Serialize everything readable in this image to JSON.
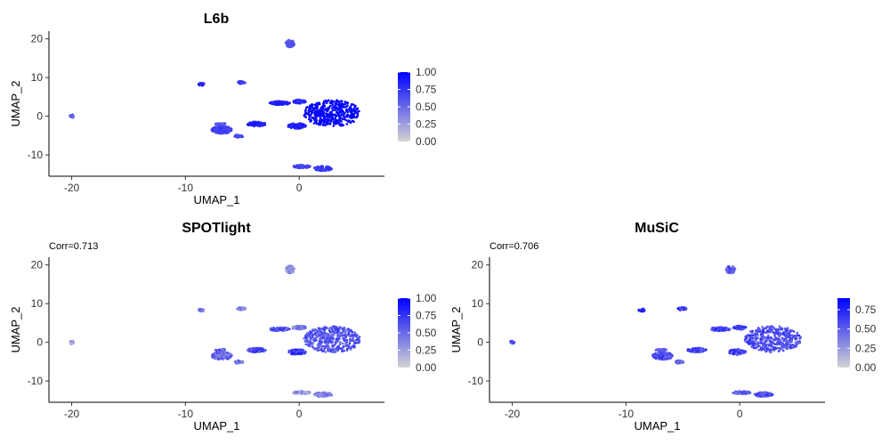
{
  "chart_data": [
    {
      "type": "scatter",
      "title": "L6b",
      "subtitle": "",
      "xlabel": "UMAP_1",
      "ylabel": "UMAP_2",
      "xlim": [
        -22,
        7.5
      ],
      "ylim": [
        -15.5,
        22
      ],
      "xticks": [
        -20,
        -10,
        0
      ],
      "yticks": [
        -10,
        0,
        10,
        20
      ],
      "color_scale": {
        "low": "#d3d3d3",
        "high": "#0000ff",
        "min": 0,
        "max": 1,
        "breaks": [
          "0.00",
          "0.25",
          "0.50",
          "0.75",
          "1.00"
        ]
      },
      "clusters": [
        {
          "x": [
            -20.2,
            -19.8
          ],
          "y": [
            -0.5,
            0.5
          ],
          "value": 0.55
        },
        {
          "x": [
            -8.9,
            -8.3
          ],
          "y": [
            7.9,
            8.7
          ],
          "value": 0.8
        },
        {
          "x": [
            -5.5,
            -4.7
          ],
          "y": [
            8.3,
            9.1
          ],
          "value": 0.7
        },
        {
          "x": [
            -1.2,
            -0.4
          ],
          "y": [
            17.8,
            19.8
          ],
          "value": 0.6
        },
        {
          "x": [
            -2.6,
            -0.8
          ],
          "y": [
            2.9,
            3.9
          ],
          "value": 0.85
        },
        {
          "x": [
            -0.6,
            0.6
          ],
          "y": [
            3.3,
            4.3
          ],
          "value": 0.8
        },
        {
          "x": [
            -4.6,
            -2.9
          ],
          "y": [
            -2.6,
            -1.4
          ],
          "value": 0.85
        },
        {
          "x": [
            -7.7,
            -5.9
          ],
          "y": [
            -4.5,
            -2.5
          ],
          "value": 0.7
        },
        {
          "x": [
            -5.7,
            -4.9
          ],
          "y": [
            -5.5,
            -4.7
          ],
          "value": 0.65
        },
        {
          "x": [
            -7.4,
            -6.4
          ],
          "y": [
            -2.3,
            -1.7
          ],
          "value": 0.6
        },
        {
          "x": [
            -1.0,
            0.6
          ],
          "y": [
            -3.2,
            -1.8
          ],
          "value": 0.85
        },
        {
          "x": [
            -0.6,
            1.0
          ],
          "y": [
            -13.4,
            -12.6
          ],
          "value": 0.7
        },
        {
          "x": [
            1.3,
            2.9
          ],
          "y": [
            -14.1,
            -12.9
          ],
          "value": 0.75
        },
        {
          "x": [
            0.4,
            5.4
          ],
          "y": [
            -2.6,
            4.2
          ],
          "value": 0.98
        }
      ]
    },
    {
      "type": "scatter",
      "title": "SPOTlight",
      "subtitle": "Corr=0.713",
      "xlabel": "UMAP_1",
      "ylabel": "UMAP_2",
      "xlim": [
        -22,
        7.5
      ],
      "ylim": [
        -15.5,
        22
      ],
      "xticks": [
        -20,
        -10,
        0
      ],
      "yticks": [
        -10,
        0,
        10,
        20
      ],
      "color_scale": {
        "low": "#d3d3d3",
        "high": "#0000ff",
        "min": 0,
        "max": 1,
        "breaks": [
          "0.00",
          "0.25",
          "0.50",
          "0.75",
          "1.00"
        ]
      },
      "clusters": [
        {
          "x": [
            -20.2,
            -19.8
          ],
          "y": [
            -0.5,
            0.5
          ],
          "value": 0.2
        },
        {
          "x": [
            -8.9,
            -8.3
          ],
          "y": [
            7.9,
            8.7
          ],
          "value": 0.45
        },
        {
          "x": [
            -5.5,
            -4.7
          ],
          "y": [
            8.3,
            9.1
          ],
          "value": 0.35
        },
        {
          "x": [
            -1.2,
            -0.4
          ],
          "y": [
            17.8,
            19.8
          ],
          "value": 0.3
        },
        {
          "x": [
            -2.6,
            -0.8
          ],
          "y": [
            2.9,
            3.9
          ],
          "value": 0.6
        },
        {
          "x": [
            -0.6,
            0.6
          ],
          "y": [
            3.3,
            4.3
          ],
          "value": 0.4
        },
        {
          "x": [
            -4.6,
            -2.9
          ],
          "y": [
            -2.6,
            -1.4
          ],
          "value": 0.65
        },
        {
          "x": [
            -7.7,
            -5.9
          ],
          "y": [
            -4.5,
            -2.5
          ],
          "value": 0.5
        },
        {
          "x": [
            -5.7,
            -4.9
          ],
          "y": [
            -5.5,
            -4.7
          ],
          "value": 0.45
        },
        {
          "x": [
            -7.4,
            -6.4
          ],
          "y": [
            -2.3,
            -1.7
          ],
          "value": 0.6
        },
        {
          "x": [
            -1.0,
            0.6
          ],
          "y": [
            -3.2,
            -1.8
          ],
          "value": 0.75
        },
        {
          "x": [
            -0.6,
            1.0
          ],
          "y": [
            -13.4,
            -12.6
          ],
          "value": 0.3
        },
        {
          "x": [
            1.3,
            2.9
          ],
          "y": [
            -14.1,
            -12.9
          ],
          "value": 0.4
        },
        {
          "x": [
            0.4,
            5.4
          ],
          "y": [
            -2.6,
            4.2
          ],
          "value": 0.6
        }
      ]
    },
    {
      "type": "scatter",
      "title": "MuSiC",
      "subtitle": "Corr=0.706",
      "xlabel": "UMAP_1",
      "ylabel": "UMAP_2",
      "xlim": [
        -22,
        7.5
      ],
      "ylim": [
        -15.5,
        22
      ],
      "xticks": [
        -20,
        -10,
        0
      ],
      "yticks": [
        -10,
        0,
        10,
        20
      ],
      "color_scale": {
        "low": "#d3d3d3",
        "high": "#0000ff",
        "min": 0,
        "max": 0.9,
        "breaks": [
          "0.00",
          "0.25",
          "0.50",
          "0.75"
        ]
      },
      "clusters": [
        {
          "x": [
            -20.2,
            -19.8
          ],
          "y": [
            -0.5,
            0.5
          ],
          "value": 0.5
        },
        {
          "x": [
            -8.9,
            -8.3
          ],
          "y": [
            7.9,
            8.7
          ],
          "value": 0.7
        },
        {
          "x": [
            -5.5,
            -4.7
          ],
          "y": [
            8.3,
            9.1
          ],
          "value": 0.65
        },
        {
          "x": [
            -1.2,
            -0.4
          ],
          "y": [
            17.8,
            19.8
          ],
          "value": 0.55
        },
        {
          "x": [
            -2.6,
            -0.8
          ],
          "y": [
            2.9,
            3.9
          ],
          "value": 0.6
        },
        {
          "x": [
            -0.6,
            0.6
          ],
          "y": [
            3.3,
            4.3
          ],
          "value": 0.6
        },
        {
          "x": [
            -4.6,
            -2.9
          ],
          "y": [
            -2.6,
            -1.4
          ],
          "value": 0.6
        },
        {
          "x": [
            -7.7,
            -5.9
          ],
          "y": [
            -4.5,
            -2.5
          ],
          "value": 0.55
        },
        {
          "x": [
            -5.7,
            -4.9
          ],
          "y": [
            -5.5,
            -4.7
          ],
          "value": 0.5
        },
        {
          "x": [
            -7.4,
            -6.4
          ],
          "y": [
            -2.3,
            -1.7
          ],
          "value": 0.55
        },
        {
          "x": [
            -1.0,
            0.6
          ],
          "y": [
            -3.2,
            -1.8
          ],
          "value": 0.6
        },
        {
          "x": [
            -0.6,
            1.0
          ],
          "y": [
            -13.4,
            -12.6
          ],
          "value": 0.5
        },
        {
          "x": [
            1.3,
            2.9
          ],
          "y": [
            -14.1,
            -12.9
          ],
          "value": 0.55
        },
        {
          "x": [
            0.4,
            5.4
          ],
          "y": [
            -2.6,
            4.2
          ],
          "value": 0.58
        }
      ]
    }
  ]
}
